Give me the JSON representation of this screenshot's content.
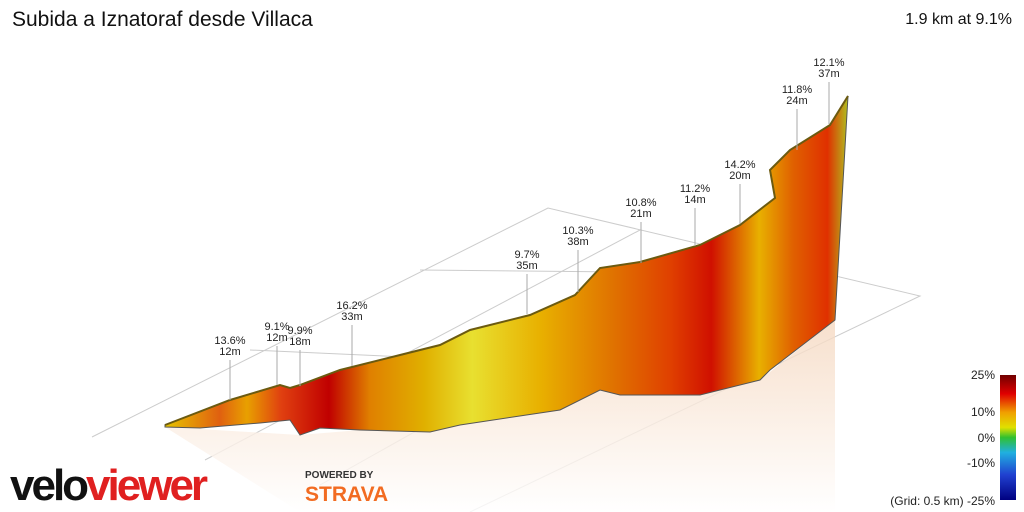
{
  "header": {
    "title": "Subida a Iznatoraf desde Villaca",
    "summary": "1.9 km at 9.1%"
  },
  "annotations": [
    {
      "grade": "13.6%",
      "length": "12m"
    },
    {
      "grade": "9.1%",
      "length": "12m"
    },
    {
      "grade": "9.9%",
      "length": "18m"
    },
    {
      "grade": "16.2%",
      "length": "33m"
    },
    {
      "grade": "9.7%",
      "length": "35m"
    },
    {
      "grade": "10.3%",
      "length": "38m"
    },
    {
      "grade": "10.8%",
      "length": "21m"
    },
    {
      "grade": "11.2%",
      "length": "14m"
    },
    {
      "grade": "14.2%",
      "length": "20m"
    },
    {
      "grade": "11.8%",
      "length": "24m"
    },
    {
      "grade": "12.1%",
      "length": "37m"
    }
  ],
  "legend": {
    "labels": [
      "25%",
      "10%",
      "0%",
      "-10%",
      "-25%"
    ],
    "grid_note": "(Grid: 0.5 km)"
  },
  "branding": {
    "logo_a": "velo",
    "logo_b": "viewer",
    "powered_by": "POWERED BY",
    "strava": "STRAVA"
  }
}
